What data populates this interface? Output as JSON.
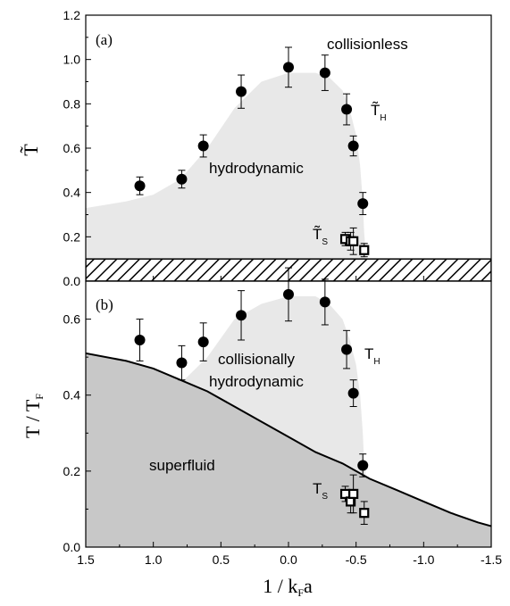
{
  "chart_data": [
    {
      "type": "scatter",
      "panel_label": "(a)",
      "ylabel": "T̃",
      "ylim": [
        0,
        1.2
      ],
      "yticks": [
        0.0,
        0.2,
        0.4,
        0.6,
        0.8,
        1.0,
        1.2
      ],
      "ytick_labels": [
        "0.0",
        "0.2",
        "0.4",
        "0.6",
        "0.8",
        "1.0",
        "1.2"
      ],
      "xlim": [
        1.5,
        -1.5
      ],
      "region_labels": {
        "upper": "collisionless",
        "shaded": "hydrodynamic"
      },
      "region_boundary": [
        [
          1.5,
          0.33
        ],
        [
          1.2,
          0.36
        ],
        [
          1.0,
          0.39
        ],
        [
          0.8,
          0.46
        ],
        [
          0.6,
          0.6
        ],
        [
          0.4,
          0.78
        ],
        [
          0.2,
          0.9
        ],
        [
          0.0,
          0.94
        ],
        [
          -0.2,
          0.94
        ],
        [
          -0.3,
          0.92
        ],
        [
          -0.4,
          0.86
        ],
        [
          -0.45,
          0.78
        ],
        [
          -0.5,
          0.66
        ],
        [
          -0.53,
          0.52
        ],
        [
          -0.55,
          0.36
        ],
        [
          -0.56,
          0.22
        ],
        [
          -0.57,
          0.14
        ],
        [
          -0.57,
          0.1
        ]
      ],
      "hatched_band": [
        0,
        0.1
      ],
      "series": [
        {
          "name": "T̃_H",
          "marker": "filled-circle",
          "x": [
            1.1,
            0.79,
            0.63,
            0.35,
            0.0,
            -0.27,
            -0.43,
            -0.48,
            -0.55
          ],
          "y": [
            0.43,
            0.46,
            0.61,
            0.855,
            0.965,
            0.94,
            0.775,
            0.61,
            0.35
          ],
          "err": [
            0.04,
            0.04,
            0.05,
            0.075,
            0.09,
            0.08,
            0.07,
            0.045,
            0.05
          ]
        },
        {
          "name": "T̃_s",
          "marker": "open-square",
          "x": [
            -0.42,
            -0.46,
            -0.48,
            -0.56
          ],
          "y": [
            0.19,
            0.18,
            0.18,
            0.14
          ],
          "err": [
            0.03,
            0.04,
            0.06,
            0.03
          ]
        }
      ]
    },
    {
      "type": "scatter",
      "panel_label": "(b)",
      "ylabel": "T / T_F",
      "xlabel": "1 / k_F a",
      "ylim": [
        0,
        0.7
      ],
      "yticks": [
        0.0,
        0.2,
        0.4,
        0.6
      ],
      "ytick_labels": [
        "0.0",
        "0.2",
        "0.4",
        "0.6"
      ],
      "xlim": [
        1.5,
        -1.5
      ],
      "xticks": [
        1.5,
        1.0,
        0.5,
        0.0,
        -0.5,
        -1.0,
        -1.5
      ],
      "xtick_labels": [
        "1.5",
        "1.0",
        "0.5",
        "0.0",
        "-0.5",
        "-1.0",
        "-1.5"
      ],
      "region_labels": {
        "light": "collisionally\nhydrodynamic",
        "dark": "superfluid"
      },
      "light_region_boundary": [
        [
          0.8,
          0.43
        ],
        [
          0.6,
          0.5
        ],
        [
          0.4,
          0.6
        ],
        [
          0.2,
          0.64
        ],
        [
          0.0,
          0.66
        ],
        [
          -0.2,
          0.66
        ],
        [
          -0.3,
          0.64
        ],
        [
          -0.4,
          0.6
        ],
        [
          -0.45,
          0.55
        ],
        [
          -0.5,
          0.48
        ],
        [
          -0.53,
          0.4
        ],
        [
          -0.55,
          0.3
        ],
        [
          -0.56,
          0.22
        ],
        [
          -0.57,
          0.2
        ]
      ],
      "superfluid_curve": [
        [
          1.5,
          0.51
        ],
        [
          1.2,
          0.49
        ],
        [
          1.0,
          0.47
        ],
        [
          0.8,
          0.44
        ],
        [
          0.6,
          0.41
        ],
        [
          0.4,
          0.37
        ],
        [
          0.2,
          0.33
        ],
        [
          0.0,
          0.29
        ],
        [
          -0.2,
          0.25
        ],
        [
          -0.4,
          0.22
        ],
        [
          -0.6,
          0.18
        ],
        [
          -0.8,
          0.15
        ],
        [
          -1.0,
          0.12
        ],
        [
          -1.2,
          0.09
        ],
        [
          -1.4,
          0.065
        ],
        [
          -1.5,
          0.055
        ]
      ],
      "series": [
        {
          "name": "T_H",
          "marker": "filled-circle",
          "x": [
            1.1,
            0.79,
            0.63,
            0.35,
            0.0,
            -0.27,
            -0.43,
            -0.48,
            -0.55
          ],
          "y": [
            0.545,
            0.485,
            0.54,
            0.61,
            0.665,
            0.645,
            0.52,
            0.405,
            0.215
          ],
          "err": [
            0.055,
            0.045,
            0.05,
            0.065,
            0.07,
            0.06,
            0.05,
            0.035,
            0.03
          ]
        },
        {
          "name": "T_s",
          "marker": "open-square",
          "x": [
            -0.42,
            -0.46,
            -0.48,
            -0.56
          ],
          "y": [
            0.14,
            0.12,
            0.14,
            0.09
          ],
          "err": [
            0.02,
            0.03,
            0.05,
            0.03
          ]
        }
      ]
    }
  ]
}
